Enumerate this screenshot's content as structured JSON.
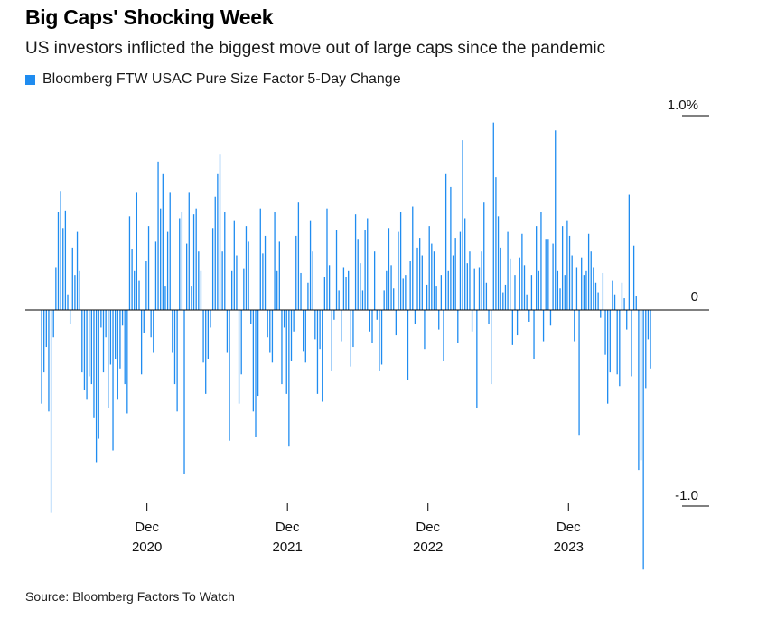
{
  "header": {
    "title": "Big Caps' Shocking Week",
    "subtitle": "US investors inflicted the biggest move out of large caps since the pandemic"
  },
  "legend": {
    "label": "Bloomberg FTW USAC Pure Size Factor 5-Day Change",
    "color": "#1f8cf0"
  },
  "source": "Source: Bloomberg Factors To Watch",
  "chart_data": {
    "type": "bar",
    "title": "Big Caps' Shocking Week",
    "subtitle": "US investors inflicted the biggest move out of large caps since the pandemic",
    "series": [
      {
        "name": "Bloomberg FTW USAC Pure Size Factor 5-Day Change",
        "color": "#1f8cf0",
        "date_range": [
          "2020-03",
          "2024-07"
        ],
        "values": [
          -0.48,
          -0.32,
          -0.19,
          -0.52,
          -1.04,
          -0.14,
          0.22,
          0.5,
          0.61,
          0.42,
          0.51,
          0.08,
          -0.07,
          0.32,
          0.18,
          0.4,
          0.2,
          -0.32,
          -0.41,
          -0.46,
          -0.34,
          -0.38,
          -0.55,
          -0.78,
          -0.66,
          -0.09,
          -0.32,
          -0.14,
          -0.5,
          -0.28,
          -0.72,
          -0.25,
          -0.46,
          -0.3,
          -0.08,
          -0.38,
          -0.53,
          0.48,
          0.31,
          0.2,
          0.6,
          0.15,
          -0.33,
          -0.12,
          0.25,
          0.43,
          -0.14,
          -0.22,
          0.35,
          0.76,
          0.52,
          0.7,
          0.12,
          0.4,
          0.6,
          -0.22,
          -0.38,
          -0.52,
          0.47,
          0.5,
          -0.84,
          0.34,
          0.6,
          0.12,
          0.49,
          0.52,
          0.3,
          0.2,
          -0.27,
          -0.43,
          -0.25,
          -0.09,
          0.42,
          0.58,
          0.7,
          0.8,
          0.3,
          0.5,
          -0.22,
          -0.67,
          0.2,
          0.46,
          0.28,
          -0.48,
          -0.33,
          0.21,
          0.43,
          0.35,
          -0.07,
          -0.52,
          -0.65,
          -0.44,
          0.52,
          0.29,
          0.38,
          -0.14,
          -0.22,
          -0.27,
          0.5,
          0.2,
          0.35,
          -0.38,
          -0.09,
          -0.43,
          -0.7,
          -0.26,
          -0.11,
          0.38,
          0.55,
          0.19,
          -0.21,
          -0.27,
          0.14,
          0.46,
          0.3,
          -0.15,
          -0.43,
          -0.2,
          -0.47,
          0.17,
          0.52,
          0.23,
          -0.31,
          -0.05,
          0.41,
          0.1,
          -0.16,
          0.22,
          0.17,
          0.2,
          -0.29,
          -0.19,
          0.49,
          0.36,
          0.24,
          0.1,
          0.41,
          0.47,
          -0.11,
          -0.17,
          0.3,
          -0.05,
          -0.31,
          -0.28,
          0.1,
          0.2,
          0.42,
          0.23,
          0.11,
          -0.13,
          0.4,
          0.5,
          0.16,
          0.18,
          -0.36,
          0.25,
          0.53,
          -0.07,
          0.32,
          0.37,
          0.28,
          -0.2,
          0.13,
          0.43,
          0.34,
          0.3,
          0.12,
          -0.1,
          0.18,
          -0.26,
          0.7,
          0.2,
          0.63,
          0.28,
          0.37,
          -0.17,
          0.4,
          0.87,
          0.47,
          0.24,
          0.3,
          -0.11,
          0.21,
          -0.5,
          0.22,
          0.3,
          0.55,
          0.14,
          -0.07,
          -0.38,
          0.96,
          0.68,
          0.48,
          0.32,
          0.09,
          0.13,
          0.4,
          0.26,
          -0.18,
          0.18,
          -0.13,
          0.27,
          0.39,
          0.23,
          0.08,
          -0.06,
          0.18,
          -0.25,
          0.43,
          0.2,
          0.5,
          -0.16,
          0.36,
          0.36,
          -0.08,
          0.34,
          0.92,
          0.2,
          0.11,
          0.43,
          0.18,
          0.46,
          0.38,
          0.28,
          -0.16,
          0.22,
          -0.64,
          0.27,
          0.18,
          0.2,
          0.39,
          0.3,
          0.22,
          0.14,
          0.09,
          -0.04,
          0.19,
          -0.23,
          -0.48,
          -0.32,
          0.15,
          0.08,
          -0.33,
          -0.39,
          0.14,
          0.06,
          -0.1,
          0.59,
          -0.34,
          0.33,
          0.07,
          -0.82,
          -0.77,
          -1.33,
          -0.4,
          -0.15,
          -0.3
        ],
        "max_value": 0.96,
        "min_value": -1.33
      }
    ],
    "x_ticks": [
      {
        "label_month": "Dec",
        "label_year": "2020",
        "date": "2020-12"
      },
      {
        "label_month": "Dec",
        "label_year": "2021",
        "date": "2021-12"
      },
      {
        "label_month": "Dec",
        "label_year": "2022",
        "date": "2022-12"
      },
      {
        "label_month": "Dec",
        "label_year": "2023",
        "date": "2023-12"
      }
    ],
    "y_ticks": [
      {
        "value": 1.0,
        "label": "1.0%"
      },
      {
        "value": 0,
        "label": "0"
      },
      {
        "value": -1.0,
        "label": "-1.0"
      }
    ],
    "ylim": [
      -1.35,
      1.0
    ],
    "grid": false,
    "zero_line": true,
    "legend_position": "top-left"
  }
}
